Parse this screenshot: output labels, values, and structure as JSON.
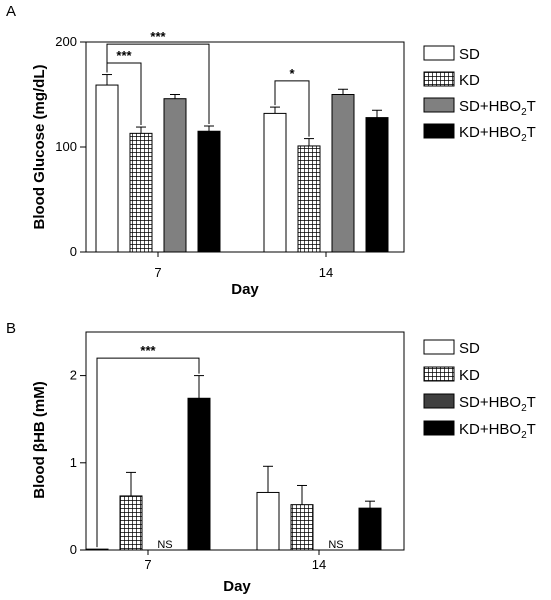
{
  "chart_data": [
    {
      "panel": "A",
      "type": "bar",
      "xlabel": "Day",
      "ylabel": "Blood Glucose (mg/dL)",
      "categories": [
        "7",
        "14"
      ],
      "ylim": [
        0,
        200
      ],
      "yticks": [
        0,
        100,
        200
      ],
      "legend_position": "right",
      "series": [
        {
          "name": "SD",
          "fill": "#ffffff",
          "pattern": "none",
          "values": [
            159,
            132
          ],
          "errors": [
            10,
            6
          ]
        },
        {
          "name": "KD",
          "fill": "#ffffff",
          "pattern": "grid",
          "values": [
            113,
            101
          ],
          "errors": [
            6,
            7
          ]
        },
        {
          "name": "SD+HBO₂T",
          "fill": "#808080",
          "pattern": "none",
          "values": [
            146,
            150
          ],
          "errors": [
            4,
            5
          ]
        },
        {
          "name": "KD+HBO₂T",
          "fill": "#000000",
          "pattern": "none",
          "values": [
            115,
            128
          ],
          "errors": [
            5,
            7
          ]
        }
      ],
      "annotations": [
        {
          "label": "***",
          "category": 0,
          "from": 0,
          "to": 1,
          "level": 180
        },
        {
          "label": "***",
          "category": 0,
          "from": 0,
          "to": 3,
          "level": 198
        },
        {
          "label": "*",
          "category": 1,
          "from": 0,
          "to": 1,
          "level": 163
        }
      ]
    },
    {
      "panel": "B",
      "type": "bar",
      "xlabel": "Day",
      "ylabel": "Blood βHB (mM)",
      "categories": [
        "7",
        "14"
      ],
      "ylim": [
        0,
        2.5
      ],
      "yticks": [
        0,
        1,
        2
      ],
      "legend_position": "right",
      "series": [
        {
          "name": "SD",
          "fill": "#ffffff",
          "pattern": "none",
          "values": [
            0.01,
            0.66
          ],
          "errors": [
            0,
            0.3
          ]
        },
        {
          "name": "KD",
          "fill": "#ffffff",
          "pattern": "grid",
          "values": [
            0.62,
            0.52
          ],
          "errors": [
            0.27,
            0.22
          ]
        },
        {
          "name": "SD+HBO₂T",
          "fill": "#404040",
          "pattern": "none",
          "values": [
            0,
            0
          ],
          "errors": [
            0,
            0
          ],
          "value_labels": [
            "NS",
            "NS"
          ]
        },
        {
          "name": "KD+HBO₂T",
          "fill": "#000000",
          "pattern": "none",
          "values": [
            1.74,
            0.48
          ],
          "errors": [
            0.26,
            0.08
          ]
        }
      ],
      "annotations": [
        {
          "label": "***",
          "category": 0,
          "from": 0,
          "to": 3,
          "level": 2.2
        }
      ]
    }
  ]
}
